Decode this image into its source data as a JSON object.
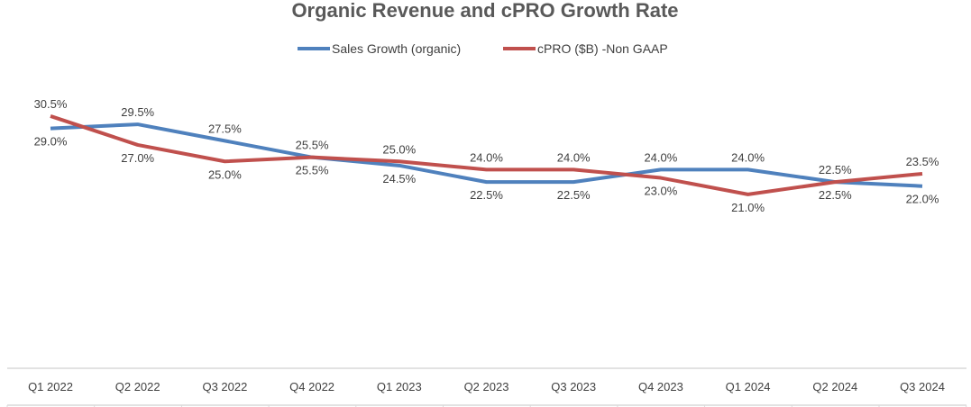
{
  "chart_data": {
    "type": "line",
    "title": "Organic Revenue and cPRO Growth Rate",
    "xlabel": "",
    "ylabel": "",
    "categories": [
      "Q1  2022",
      "Q2  2022",
      "Q3  2022",
      "Q4  2022",
      "Q1 2023",
      "Q2 2023",
      "Q3 2023",
      "Q4 2023",
      "Q1 2024",
      "Q2 2024",
      "Q3 2024"
    ],
    "ylim": [
      0,
      31
    ],
    "grid": false,
    "legend_position": "top",
    "series": [
      {
        "name": "Sales Growth (organic)",
        "color": "#4f81bd",
        "values": [
          29.0,
          29.5,
          27.5,
          25.5,
          24.5,
          22.5,
          22.5,
          24.0,
          24.0,
          22.5,
          22.0
        ]
      },
      {
        "name": "cPRO ($B) -Non GAAP",
        "color": "#c0504d",
        "values": [
          30.5,
          27.0,
          25.0,
          25.5,
          25.0,
          24.0,
          24.0,
          23.0,
          21.0,
          22.5,
          23.5
        ]
      }
    ]
  }
}
